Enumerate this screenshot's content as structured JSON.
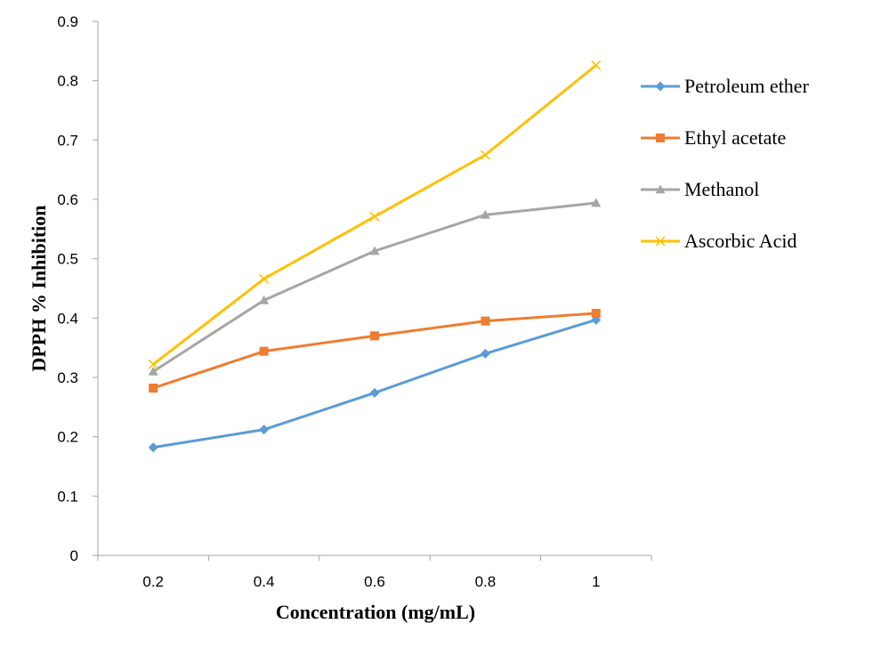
{
  "chart_data": {
    "type": "line",
    "x": [
      0.2,
      0.4,
      0.6,
      0.8,
      1
    ],
    "x_tick_labels": [
      "0.2",
      "0.4",
      "0.6",
      "0.8",
      "1"
    ],
    "xlabel": "Concentration (mg/mL)",
    "ylabel": "DPPH % Inhibition",
    "ylim": [
      0,
      0.9
    ],
    "y_ticks": [
      0,
      0.1,
      0.2,
      0.3,
      0.4,
      0.5,
      0.6,
      0.7,
      0.8,
      0.9
    ],
    "y_tick_labels": [
      "0",
      "0.1",
      "0.2",
      "0.3",
      "0.4",
      "0.5",
      "0.6",
      "0.7",
      "0.8",
      "0.9"
    ],
    "grid": false,
    "legend_position": "right",
    "series": [
      {
        "name": "Petroleum ether",
        "color": "#5B9BD5",
        "marker": "diamond",
        "values": [
          0.182,
          0.212,
          0.274,
          0.34,
          0.397
        ]
      },
      {
        "name": "Ethyl acetate",
        "color": "#ED7D31",
        "marker": "square",
        "values": [
          0.282,
          0.344,
          0.37,
          0.395,
          0.408
        ]
      },
      {
        "name": "Methanol",
        "color": "#A5A5A5",
        "marker": "triangle",
        "values": [
          0.31,
          0.43,
          0.513,
          0.574,
          0.594
        ]
      },
      {
        "name": "Ascorbic Acid",
        "color": "#FFC000",
        "marker": "x",
        "values": [
          0.322,
          0.466,
          0.571,
          0.675,
          0.826
        ]
      }
    ]
  }
}
